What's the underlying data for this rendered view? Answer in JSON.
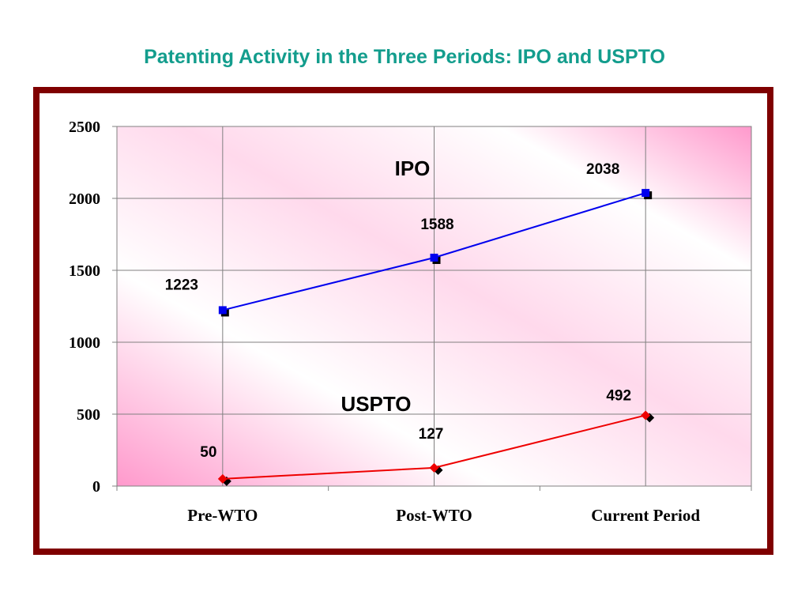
{
  "title": "Patenting Activity in the Three Periods: IPO and USPTO",
  "chart_data": {
    "type": "line",
    "categories": [
      "Pre-WTO",
      "Post-WTO",
      "Current Period"
    ],
    "ylim": [
      0,
      2500
    ],
    "yticks": [
      0,
      500,
      1000,
      1500,
      2000,
      2500
    ],
    "grid": true,
    "series": [
      {
        "name": "IPO",
        "values": [
          1223,
          1588,
          2038
        ],
        "color": "#0000ee",
        "marker": "square"
      },
      {
        "name": "USPTO",
        "values": [
          50,
          127,
          492
        ],
        "color": "#ee0000",
        "marker": "diamond"
      }
    ],
    "colors": {
      "frame": "#7f0000",
      "title": "#139d8d",
      "plot_gradient_dark": "#ff99cc",
      "plot_gradient_light": "#ffffff"
    }
  }
}
